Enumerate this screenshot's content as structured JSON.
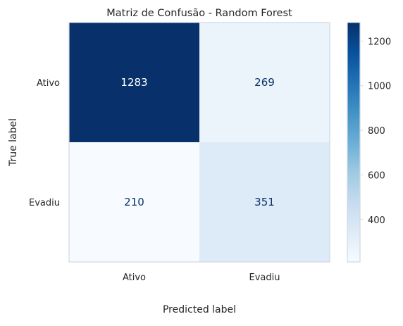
{
  "chart_data": {
    "type": "heatmap",
    "title": "Matriz de Confusão - Random Forest",
    "xlabel": "Predicted label",
    "ylabel": "True label",
    "x_categories": [
      "Ativo",
      "Evadiu"
    ],
    "y_categories": [
      "Ativo",
      "Evadiu"
    ],
    "values": [
      [
        1283,
        269
      ],
      [
        210,
        351
      ]
    ],
    "colormap": "Blues",
    "colorbar": {
      "range": [
        210,
        1283
      ],
      "ticks": [
        400,
        600,
        800,
        1000,
        1200
      ]
    },
    "grid": false,
    "colors": {
      "low": "#f7fbff",
      "high": "#08306b",
      "text_on_dark": "#ffffff",
      "text_on_light": "#08306b",
      "frame": "#cfd8e3"
    }
  }
}
